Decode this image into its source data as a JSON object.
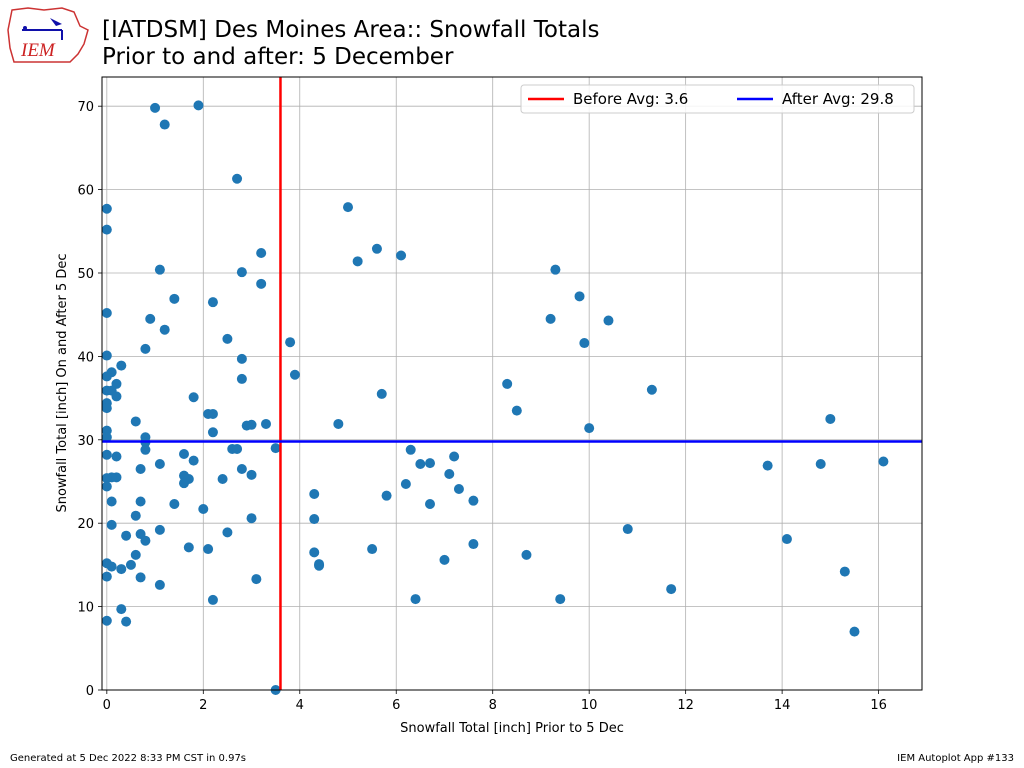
{
  "logo": {
    "text": "IEM"
  },
  "header": {
    "title_line1": "[IATDSM] Des Moines Area:: Snowfall Totals",
    "title_line2": "Prior to and after: 5 December"
  },
  "footer": {
    "left": "Generated at 5 Dec 2022 8:33 PM CST in 0.97s",
    "right": "IEM Autoplot App #133"
  },
  "chart_data": {
    "type": "scatter",
    "xlabel": "Snowfall Total [inch] Prior to 5 Dec",
    "ylabel": "Snowfall Total [inch] On and After 5 Dec",
    "xlim": [
      -0.1,
      16.9
    ],
    "ylim": [
      0,
      73.5
    ],
    "xticks": [
      0,
      2,
      4,
      6,
      8,
      10,
      12,
      14,
      16
    ],
    "yticks": [
      0,
      10,
      20,
      30,
      40,
      50,
      60,
      70
    ],
    "grid": true,
    "legend_placement": "top-right",
    "point_color": "#1f77b4",
    "avg_lines": [
      {
        "label": "Before Avg: 3.6",
        "orientation": "vertical",
        "value": 3.6,
        "color": "#ff0000"
      },
      {
        "label": "After Avg: 29.8",
        "orientation": "horizontal",
        "value": 29.8,
        "color": "#0000ff"
      }
    ],
    "points": [
      [
        1.0,
        69.8
      ],
      [
        1.9,
        70.1
      ],
      [
        1.2,
        67.8
      ],
      [
        2.7,
        61.3
      ],
      [
        0.0,
        57.7
      ],
      [
        5.0,
        57.9
      ],
      [
        0.0,
        55.2
      ],
      [
        5.6,
        52.9
      ],
      [
        3.2,
        52.4
      ],
      [
        6.1,
        52.1
      ],
      [
        5.2,
        51.4
      ],
      [
        1.1,
        50.4
      ],
      [
        2.8,
        50.1
      ],
      [
        9.3,
        50.4
      ],
      [
        3.2,
        48.7
      ],
      [
        9.8,
        47.2
      ],
      [
        1.4,
        46.9
      ],
      [
        2.2,
        46.5
      ],
      [
        0.0,
        45.2
      ],
      [
        0.9,
        44.5
      ],
      [
        9.2,
        44.5
      ],
      [
        10.4,
        44.3
      ],
      [
        1.2,
        43.2
      ],
      [
        2.5,
        42.1
      ],
      [
        3.8,
        41.7
      ],
      [
        9.9,
        41.6
      ],
      [
        0.8,
        40.9
      ],
      [
        0.0,
        40.1
      ],
      [
        2.8,
        39.7
      ],
      [
        0.3,
        38.9
      ],
      [
        0.1,
        38.1
      ],
      [
        3.9,
        37.8
      ],
      [
        0.0,
        37.6
      ],
      [
        2.8,
        37.3
      ],
      [
        0.2,
        36.7
      ],
      [
        8.3,
        36.7
      ],
      [
        11.3,
        36.0
      ],
      [
        0.0,
        35.9
      ],
      [
        0.1,
        35.9
      ],
      [
        5.7,
        35.5
      ],
      [
        0.2,
        35.2
      ],
      [
        1.8,
        35.1
      ],
      [
        0.0,
        34.4
      ],
      [
        0.0,
        33.8
      ],
      [
        8.5,
        33.5
      ],
      [
        2.1,
        33.1
      ],
      [
        2.2,
        33.1
      ],
      [
        15.0,
        32.5
      ],
      [
        0.6,
        32.2
      ],
      [
        3.3,
        31.9
      ],
      [
        4.8,
        31.9
      ],
      [
        2.9,
        31.7
      ],
      [
        3.0,
        31.8
      ],
      [
        10.0,
        31.4
      ],
      [
        0.0,
        31.1
      ],
      [
        2.2,
        30.9
      ],
      [
        0.0,
        30.3
      ],
      [
        0.8,
        30.3
      ],
      [
        0.8,
        29.7
      ],
      [
        3.5,
        29.0
      ],
      [
        2.6,
        28.9
      ],
      [
        2.7,
        28.9
      ],
      [
        0.8,
        28.8
      ],
      [
        6.3,
        28.8
      ],
      [
        1.6,
        28.3
      ],
      [
        0.0,
        28.2
      ],
      [
        0.2,
        28.0
      ],
      [
        7.2,
        28.0
      ],
      [
        1.8,
        27.5
      ],
      [
        16.1,
        27.4
      ],
      [
        6.7,
        27.2
      ],
      [
        6.5,
        27.1
      ],
      [
        14.8,
        27.1
      ],
      [
        1.1,
        27.1
      ],
      [
        13.7,
        26.9
      ],
      [
        2.8,
        26.5
      ],
      [
        0.7,
        26.5
      ],
      [
        7.1,
        25.9
      ],
      [
        3.0,
        25.8
      ],
      [
        1.6,
        25.7
      ],
      [
        0.2,
        25.5
      ],
      [
        0.1,
        25.5
      ],
      [
        0.0,
        25.4
      ],
      [
        1.7,
        25.3
      ],
      [
        2.4,
        25.3
      ],
      [
        1.6,
        24.8
      ],
      [
        6.2,
        24.7
      ],
      [
        0.0,
        24.4
      ],
      [
        7.3,
        24.1
      ],
      [
        4.3,
        23.5
      ],
      [
        5.8,
        23.3
      ],
      [
        0.1,
        22.6
      ],
      [
        0.7,
        22.6
      ],
      [
        7.6,
        22.7
      ],
      [
        6.7,
        22.3
      ],
      [
        1.4,
        22.3
      ],
      [
        2.0,
        21.7
      ],
      [
        0.6,
        20.9
      ],
      [
        3.0,
        20.6
      ],
      [
        4.3,
        20.5
      ],
      [
        0.1,
        19.8
      ],
      [
        10.8,
        19.3
      ],
      [
        1.1,
        19.2
      ],
      [
        2.5,
        18.9
      ],
      [
        0.7,
        18.7
      ],
      [
        0.4,
        18.5
      ],
      [
        14.1,
        18.1
      ],
      [
        0.8,
        17.9
      ],
      [
        7.6,
        17.5
      ],
      [
        1.7,
        17.1
      ],
      [
        2.1,
        16.9
      ],
      [
        5.5,
        16.9
      ],
      [
        4.3,
        16.5
      ],
      [
        0.6,
        16.2
      ],
      [
        8.7,
        16.2
      ],
      [
        7.0,
        15.6
      ],
      [
        0.0,
        15.2
      ],
      [
        4.4,
        15.1
      ],
      [
        4.4,
        14.9
      ],
      [
        0.5,
        15.0
      ],
      [
        0.1,
        14.8
      ],
      [
        0.3,
        14.5
      ],
      [
        15.3,
        14.2
      ],
      [
        0.0,
        13.6
      ],
      [
        0.7,
        13.5
      ],
      [
        3.1,
        13.3
      ],
      [
        1.1,
        12.6
      ],
      [
        11.7,
        12.1
      ],
      [
        6.4,
        10.9
      ],
      [
        9.4,
        10.9
      ],
      [
        2.2,
        10.8
      ],
      [
        0.3,
        9.7
      ],
      [
        0.0,
        8.3
      ],
      [
        0.4,
        8.2
      ],
      [
        15.5,
        7.0
      ],
      [
        3.5,
        0.0
      ]
    ]
  }
}
